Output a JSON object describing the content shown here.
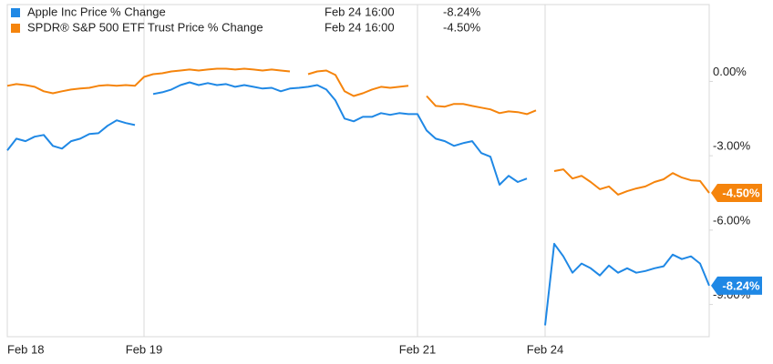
{
  "chart_data": {
    "type": "line",
    "categories": [
      "Feb 18",
      null,
      null,
      null,
      null,
      null,
      null,
      null,
      null,
      null,
      null,
      null,
      null,
      null,
      null,
      "Feb 19",
      null,
      null,
      null,
      null,
      null,
      null,
      null,
      null,
      null,
      null,
      null,
      null,
      null,
      null,
      null,
      null,
      null,
      null,
      null,
      null,
      null,
      null,
      null,
      null,
      null,
      null,
      null,
      null,
      null,
      "Feb 21",
      null,
      null,
      null,
      null,
      null,
      null,
      null,
      null,
      null,
      null,
      null,
      null,
      null,
      "Feb 24",
      null,
      null,
      null,
      null,
      null,
      null,
      null,
      null,
      null,
      null,
      null,
      null,
      null,
      null,
      null,
      null,
      null,
      null
    ],
    "series": [
      {
        "name": "Apple Inc Price % Change",
        "color": "#1f88e5",
        "legend_time": "Feb 24 16:00",
        "values": [
          -2.78,
          -2.31,
          -2.41,
          -2.23,
          -2.16,
          -2.6,
          -2.71,
          -2.41,
          -2.31,
          -2.12,
          -2.09,
          -1.79,
          -1.57,
          -1.68,
          -1.76,
          null,
          -0.51,
          -0.44,
          -0.33,
          -0.15,
          -0.04,
          -0.15,
          -0.07,
          -0.15,
          -0.11,
          -0.22,
          -0.15,
          -0.22,
          -0.29,
          -0.26,
          -0.4,
          -0.29,
          -0.26,
          -0.22,
          -0.15,
          -0.33,
          -0.77,
          -1.5,
          -1.61,
          -1.43,
          -1.43,
          -1.28,
          -1.35,
          -1.28,
          -1.32,
          -1.32,
          -1.98,
          -2.31,
          -2.41,
          -2.6,
          -2.49,
          -2.41,
          -2.89,
          -3.04,
          -4.17,
          -3.81,
          -4.06,
          -3.92,
          null,
          -9.84,
          -6.55,
          -7.06,
          -7.72,
          -7.35,
          -7.54,
          -7.83,
          -7.43,
          -7.72,
          -7.54,
          -7.72,
          -7.65,
          -7.54,
          -7.46,
          -6.99,
          -7.17,
          -7.06,
          -7.35,
          -8.24
        ],
        "value_labels": [
          null,
          null,
          null,
          null,
          null,
          null,
          null,
          null,
          null,
          null,
          null,
          null,
          null,
          null,
          null,
          null,
          null,
          null,
          null,
          null,
          null,
          null,
          null,
          null,
          null,
          null,
          null,
          null,
          null,
          null,
          null,
          null,
          null,
          null,
          null,
          null,
          null,
          null,
          null,
          null,
          null,
          null,
          null,
          null,
          null,
          null,
          null,
          null,
          null,
          null,
          null,
          null,
          null,
          null,
          null,
          null,
          null,
          null,
          null,
          null,
          null,
          null,
          null,
          null,
          null,
          null,
          null,
          null,
          null,
          null,
          null,
          null,
          null,
          null,
          null,
          null,
          null,
          "-8.24%"
        ]
      },
      {
        "name": "SPDR® S&P 500 ETF Trust Price % Change",
        "color": "#f5840c",
        "legend_time": "Feb 24 16:00",
        "values": [
          -0.18,
          -0.11,
          -0.15,
          -0.22,
          -0.4,
          -0.48,
          -0.4,
          -0.33,
          -0.29,
          -0.26,
          -0.18,
          -0.15,
          -0.18,
          -0.15,
          -0.18,
          0.18,
          0.29,
          0.33,
          0.4,
          0.44,
          0.48,
          0.44,
          0.48,
          0.51,
          0.51,
          0.48,
          0.51,
          0.48,
          0.44,
          0.48,
          0.44,
          0.4,
          null,
          0.29,
          0.4,
          0.44,
          0.26,
          -0.4,
          -0.59,
          -0.48,
          -0.33,
          -0.22,
          -0.26,
          -0.22,
          -0.18,
          null,
          -0.59,
          -0.99,
          -1.02,
          -0.91,
          -0.91,
          -0.99,
          -1.06,
          -1.13,
          -1.28,
          -1.21,
          -1.24,
          -1.32,
          -1.17,
          null,
          -3.62,
          -3.55,
          -3.92,
          -3.81,
          -4.06,
          -4.35,
          -4.24,
          -4.57,
          -4.43,
          -4.32,
          -4.24,
          -4.06,
          -3.95,
          -3.7,
          -3.88,
          -3.99,
          -4.02,
          -4.5
        ],
        "value_labels": [
          null,
          null,
          null,
          null,
          null,
          null,
          null,
          null,
          null,
          null,
          null,
          null,
          null,
          null,
          null,
          null,
          null,
          null,
          null,
          null,
          null,
          null,
          null,
          null,
          null,
          null,
          null,
          null,
          null,
          null,
          null,
          null,
          null,
          null,
          null,
          null,
          null,
          null,
          null,
          null,
          null,
          null,
          null,
          null,
          null,
          null,
          null,
          null,
          null,
          null,
          null,
          null,
          null,
          null,
          null,
          null,
          null,
          null,
          null,
          null,
          null,
          null,
          null,
          null,
          null,
          null,
          null,
          null,
          null,
          null,
          null,
          null,
          null,
          null,
          null,
          null,
          null,
          "-4.50%"
        ]
      }
    ],
    "ylim": [
      -10.3,
      3.1
    ],
    "yticks": [
      {
        "value": 0,
        "label": "0.00%"
      },
      {
        "value": -3,
        "label": "-3.00%"
      },
      {
        "value": -6,
        "label": "-6.00%"
      },
      {
        "value": -9,
        "label": "-9.00%"
      }
    ],
    "x_grid": true
  }
}
